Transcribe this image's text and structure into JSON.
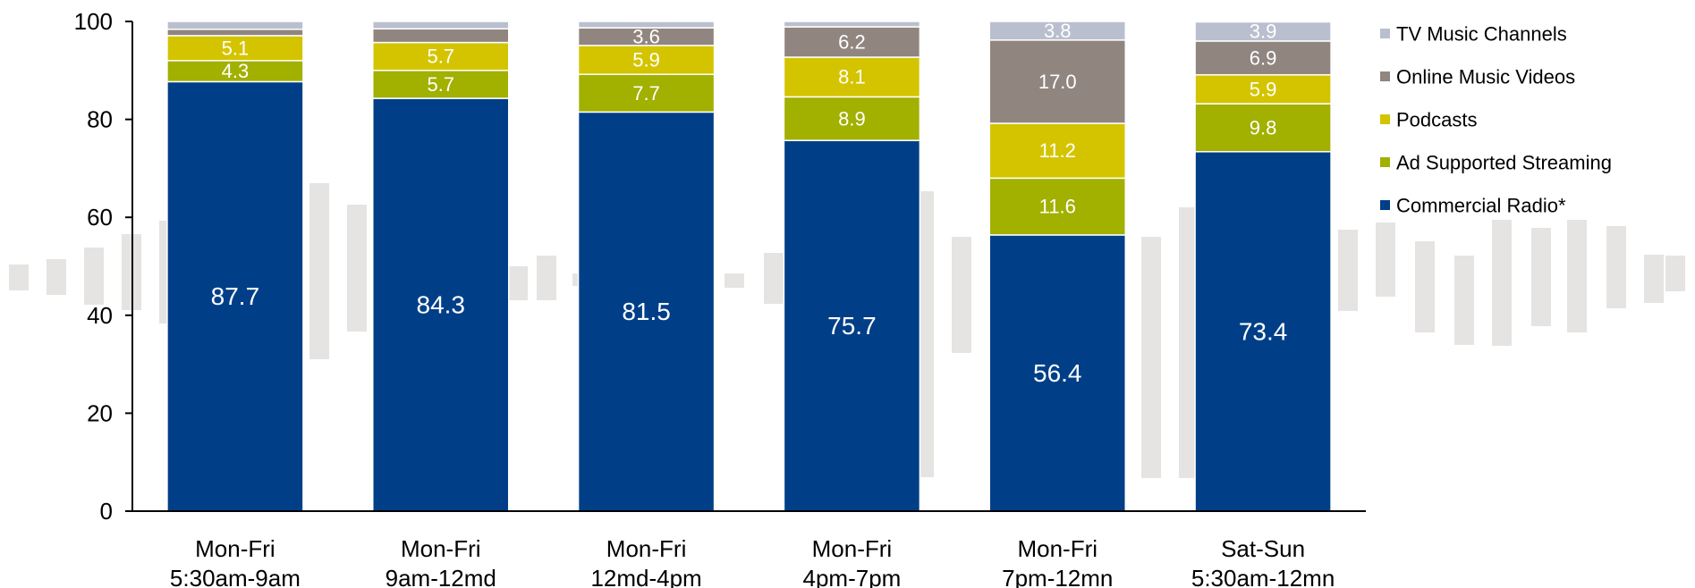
{
  "chart_data": {
    "type": "bar",
    "stacked": true,
    "categories": [
      [
        "Mon-Fri",
        "5:30am-9am"
      ],
      [
        "Mon-Fri",
        "9am-12md"
      ],
      [
        "Mon-Fri",
        "12md-4pm"
      ],
      [
        "Mon-Fri",
        "4pm-7pm"
      ],
      [
        "Mon-Fri",
        "7pm-12mn"
      ],
      [
        "Sat-Sun",
        "5:30am-12mn"
      ]
    ],
    "series": [
      {
        "name": "Commercial Radio*",
        "color": "#003F87",
        "values": [
          87.7,
          84.3,
          81.5,
          75.7,
          56.4,
          73.4
        ]
      },
      {
        "name": "Ad Supported Streaming",
        "color": "#A2B000",
        "values": [
          4.3,
          5.7,
          7.7,
          8.9,
          11.6,
          9.8
        ]
      },
      {
        "name": "Podcasts",
        "color": "#D4C400",
        "values": [
          5.1,
          5.7,
          5.9,
          8.1,
          11.2,
          5.9
        ]
      },
      {
        "name": "Online Music Videos",
        "color": "#918580",
        "values": [
          1.3,
          2.8,
          3.6,
          6.2,
          17.0,
          6.9
        ]
      },
      {
        "name": "TV Music Channels",
        "color": "#B9BFCE",
        "values": [
          1.6,
          1.5,
          1.3,
          1.1,
          3.8,
          3.9
        ]
      }
    ],
    "data_labels": [
      [
        "87.7",
        "4.3",
        "5.1",
        "",
        ""
      ],
      [
        "84.3",
        "5.7",
        "5.7",
        "",
        ""
      ],
      [
        "81.5",
        "7.7",
        "5.9",
        "3.6",
        ""
      ],
      [
        "75.7",
        "8.9",
        "8.1",
        "6.2",
        ""
      ],
      [
        "56.4",
        "11.6",
        "11.2",
        "17.0",
        "3.8"
      ],
      [
        "73.4",
        "9.8",
        "5.9",
        "6.9",
        "3.9"
      ]
    ],
    "y_ticks": [
      "0",
      "20",
      "40",
      "60",
      "80",
      "100"
    ],
    "ylim": [
      0,
      100
    ],
    "grid": false,
    "legend_position": "right",
    "legend_order": [
      "TV Music Channels",
      "Online Music Videos",
      "Podcasts",
      "Ad Supported Streaming",
      "Commercial Radio*"
    ],
    "background_color": "#E6E4E2"
  }
}
